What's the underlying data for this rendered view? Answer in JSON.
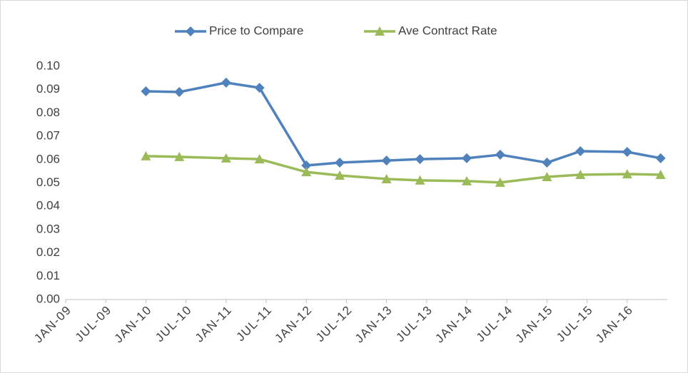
{
  "chart_data": {
    "type": "line",
    "x": [
      12,
      17,
      24,
      29,
      36,
      41,
      48,
      53,
      60,
      65,
      72,
      77,
      84,
      89
    ],
    "series": [
      {
        "name": "Price to Compare",
        "color": "#4f81bd",
        "marker": "diamond",
        "values": [
          0.0893,
          0.089,
          0.093,
          0.0908,
          0.0575,
          0.0587,
          0.0596,
          0.0602,
          0.0606,
          0.0621,
          0.0587,
          0.0636,
          0.0633,
          0.0606
        ]
      },
      {
        "name": "Ave Contract Rate",
        "color": "#9bbb59",
        "marker": "triangle",
        "values": [
          0.0615,
          0.0612,
          0.0606,
          0.0602,
          0.0547,
          0.0532,
          0.0517,
          0.0511,
          0.0508,
          0.0502,
          0.0526,
          0.0535,
          0.0538,
          0.0535
        ]
      }
    ],
    "xlim": [
      0,
      90
    ],
    "xticks": [
      {
        "value": 0,
        "label": "JAN-09"
      },
      {
        "value": 6,
        "label": "JUL-09"
      },
      {
        "value": 12,
        "label": "JAN-10"
      },
      {
        "value": 18,
        "label": "JUL-10"
      },
      {
        "value": 24,
        "label": "JAN-11"
      },
      {
        "value": 30,
        "label": "JUL-11"
      },
      {
        "value": 36,
        "label": "JAN-12"
      },
      {
        "value": 42,
        "label": "JUL-12"
      },
      {
        "value": 48,
        "label": "JAN-13"
      },
      {
        "value": 54,
        "label": "JUL-13"
      },
      {
        "value": 60,
        "label": "JAN-14"
      },
      {
        "value": 66,
        "label": "JUL-14"
      },
      {
        "value": 72,
        "label": "JAN-15"
      },
      {
        "value": 78,
        "label": "JUL-15"
      },
      {
        "value": 84,
        "label": "JAN-16"
      }
    ],
    "ylim": [
      0,
      0.1
    ],
    "yticks": [
      {
        "value": 0,
        "label": "0.00"
      },
      {
        "value": 0.01,
        "label": "0.01"
      },
      {
        "value": 0.02,
        "label": "0.02"
      },
      {
        "value": 0.03,
        "label": "0.03"
      },
      {
        "value": 0.04,
        "label": "0.04"
      },
      {
        "value": 0.05,
        "label": "0.05"
      },
      {
        "value": 0.06,
        "label": "0.06"
      },
      {
        "value": 0.07,
        "label": "0.07"
      },
      {
        "value": 0.08,
        "label": "0.08"
      },
      {
        "value": 0.09,
        "label": "0.09"
      },
      {
        "value": 0.1,
        "label": "0.10"
      }
    ],
    "legend": "top",
    "grid": false
  }
}
